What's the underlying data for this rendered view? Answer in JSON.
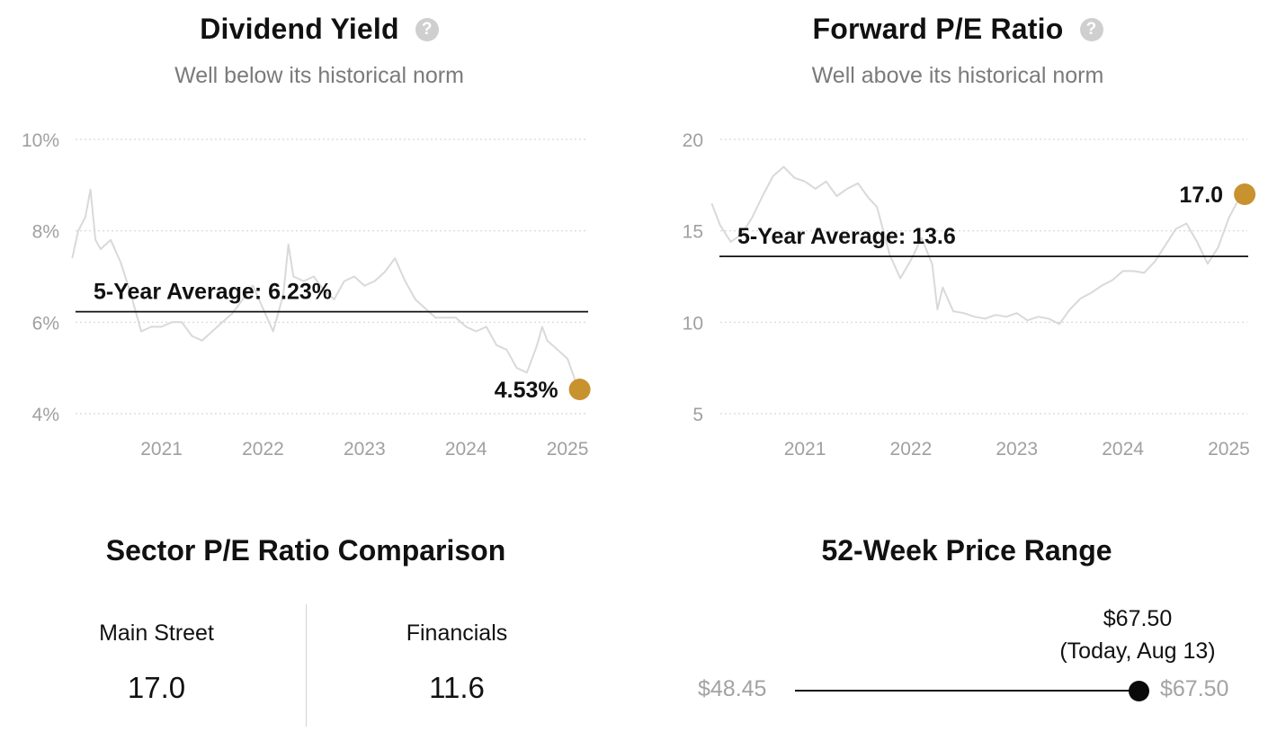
{
  "dividend": {
    "title": "Dividend Yield",
    "subtitle": "Well below its historical norm",
    "avg_label": "5-Year Average: 6.23%",
    "current_label": "4.53%"
  },
  "forward_pe": {
    "title": "Forward P/E Ratio",
    "subtitle": "Well above its historical norm",
    "avg_label": "5-Year Average: 13.6",
    "current_label": "17.0"
  },
  "sector": {
    "title": "Sector P/E Ratio Comparison",
    "items": [
      {
        "label": "Main Street",
        "value": "17.0"
      },
      {
        "label": "Financials",
        "value": "11.6"
      }
    ]
  },
  "price_range": {
    "title": "52-Week Price Range",
    "low": "$48.45",
    "high": "$67.50",
    "current": "$67.50",
    "current_note": "(Today, Aug 13)",
    "current_fraction": 1.0
  },
  "colors": {
    "series_line": "#d9d9d9",
    "marker": "#c8922e",
    "average_line": "#111111",
    "gridline": "#d6d6d6",
    "axis_text": "#a0a0a0"
  },
  "chart_data": [
    {
      "type": "line",
      "title": "Dividend Yield",
      "subtitle": "Well below its historical norm",
      "y_unit": "%",
      "ylim": [
        4,
        10
      ],
      "yticks": [
        4,
        6,
        8,
        10
      ],
      "ytick_labels": [
        "4%",
        "6%",
        "8%",
        "10%"
      ],
      "xlim": [
        2020.6,
        2025.65
      ],
      "xticks": [
        2021,
        2022,
        2023,
        2024,
        2025
      ],
      "xtick_labels": [
        "2021",
        "2022",
        "2023",
        "2024",
        "2025"
      ],
      "grid": true,
      "average": 6.23,
      "current": 4.53,
      "series": [
        {
          "x": [
            2020.62,
            2020.68,
            2020.75,
            2020.8,
            2020.85,
            2020.9,
            2021.0,
            2021.1,
            2021.2,
            2021.3,
            2021.4,
            2021.5,
            2021.6,
            2021.7,
            2021.8,
            2021.9,
            2022.0,
            2022.1,
            2022.2,
            2022.3,
            2022.4,
            2022.5,
            2022.6,
            2022.7,
            2022.75,
            2022.8,
            2022.9,
            2023.0,
            2023.1,
            2023.2,
            2023.3,
            2023.4,
            2023.5,
            2023.6,
            2023.7,
            2023.8,
            2023.9,
            2024.0,
            2024.1,
            2024.2,
            2024.3,
            2024.4,
            2024.5,
            2024.6,
            2024.7,
            2024.8,
            2024.9,
            2025.0,
            2025.1,
            2025.2,
            2025.25,
            2025.3,
            2025.4,
            2025.5,
            2025.58,
            2025.62
          ],
          "y": [
            7.4,
            8.0,
            8.3,
            8.9,
            7.8,
            7.6,
            7.8,
            7.3,
            6.6,
            5.8,
            5.9,
            5.9,
            6.0,
            6.0,
            5.7,
            5.6,
            5.8,
            6.0,
            6.2,
            6.5,
            6.8,
            6.3,
            5.8,
            6.6,
            7.7,
            7.0,
            6.9,
            7.0,
            6.7,
            6.5,
            6.9,
            7.0,
            6.8,
            6.9,
            7.1,
            7.4,
            6.9,
            6.5,
            6.3,
            6.1,
            6.1,
            6.1,
            5.9,
            5.8,
            5.9,
            5.5,
            5.4,
            5.0,
            4.9,
            5.5,
            5.9,
            5.6,
            5.4,
            5.2,
            4.7,
            4.53
          ]
        }
      ]
    },
    {
      "type": "line",
      "title": "Forward P/E Ratio",
      "subtitle": "Well above its historical norm",
      "ylim": [
        5,
        20
      ],
      "yticks": [
        5,
        10,
        15,
        20
      ],
      "ytick_labels": [
        "5",
        "10",
        "15",
        "20"
      ],
      "xlim": [
        2020.6,
        2025.7
      ],
      "xticks": [
        2021,
        2022,
        2023,
        2024,
        2025
      ],
      "xtick_labels": [
        "2021",
        "2022",
        "2023",
        "2024",
        "2025"
      ],
      "grid": true,
      "average": 13.6,
      "current": 17.0,
      "series": [
        {
          "x": [
            2020.62,
            2020.7,
            2020.8,
            2020.9,
            2021.0,
            2021.1,
            2021.2,
            2021.3,
            2021.4,
            2021.5,
            2021.6,
            2021.7,
            2021.8,
            2021.9,
            2022.0,
            2022.1,
            2022.18,
            2022.3,
            2022.4,
            2022.5,
            2022.6,
            2022.7,
            2022.75,
            2022.8,
            2022.9,
            2023.0,
            2023.1,
            2023.2,
            2023.3,
            2023.4,
            2023.5,
            2023.6,
            2023.7,
            2023.8,
            2023.9,
            2024.0,
            2024.1,
            2024.2,
            2024.3,
            2024.4,
            2024.5,
            2024.6,
            2024.7,
            2024.8,
            2024.9,
            2025.0,
            2025.1,
            2025.2,
            2025.3,
            2025.4,
            2025.5,
            2025.6,
            2025.65
          ],
          "y": [
            16.5,
            15.3,
            14.4,
            14.8,
            15.7,
            16.9,
            18.0,
            18.5,
            17.9,
            17.7,
            17.3,
            17.7,
            16.9,
            17.3,
            17.6,
            16.8,
            16.3,
            13.7,
            12.4,
            13.4,
            14.6,
            13.2,
            10.7,
            11.9,
            10.6,
            10.5,
            10.3,
            10.2,
            10.4,
            10.3,
            10.5,
            10.1,
            10.3,
            10.2,
            9.9,
            10.7,
            11.3,
            11.6,
            12.0,
            12.3,
            12.8,
            12.8,
            12.7,
            13.3,
            14.2,
            15.1,
            15.4,
            14.4,
            13.2,
            14.1,
            15.7,
            16.8,
            17.0
          ]
        }
      ]
    }
  ]
}
